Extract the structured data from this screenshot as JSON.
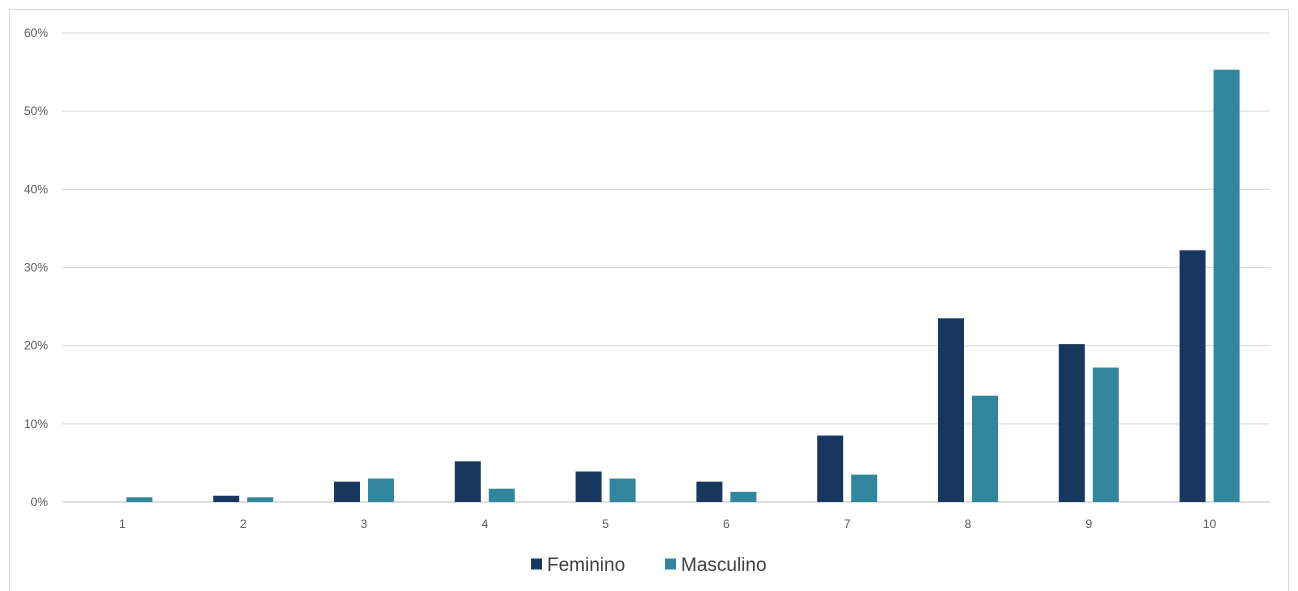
{
  "chart_data": {
    "type": "bar",
    "title": "",
    "xlabel": "",
    "ylabel": "",
    "categories": [
      "1",
      "2",
      "3",
      "4",
      "5",
      "6",
      "7",
      "8",
      "9",
      "10"
    ],
    "series": [
      {
        "name": "Feminino",
        "color": "#17375e",
        "values": [
          0.0,
          0.8,
          2.6,
          5.2,
          3.9,
          2.6,
          8.5,
          23.5,
          20.2,
          32.2
        ]
      },
      {
        "name": "Masculino",
        "color": "#31859c",
        "values": [
          0.6,
          0.6,
          3.0,
          1.7,
          3.0,
          1.3,
          3.5,
          13.6,
          17.2,
          55.3
        ]
      }
    ],
    "ylim": [
      0,
      60
    ],
    "yticks": [
      "0%",
      "10%",
      "20%",
      "30%",
      "40%",
      "50%",
      "60%"
    ],
    "grid": true,
    "legend_position": "bottom",
    "colors": {
      "gridline": "#d9d9d9",
      "axis": "#bfbfbf",
      "tick_text": "#595959",
      "legend_text": "#404040"
    }
  }
}
